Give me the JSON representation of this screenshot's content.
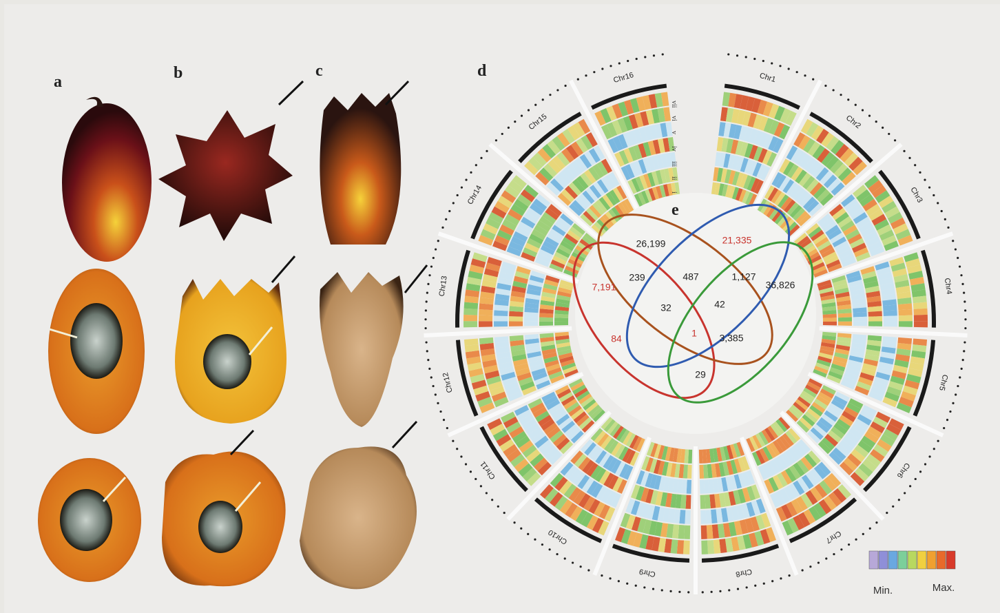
{
  "panel_labels": [
    "a",
    "b",
    "c",
    "d",
    "e"
  ],
  "circos": {
    "chromosomes": [
      "Chr1",
      "Chr2",
      "Chr3",
      "Chr4",
      "Chr5",
      "Chr6",
      "Chr7",
      "Chr8",
      "Chr9",
      "Chr10",
      "Chr11",
      "Chr12",
      "Chr13",
      "Chr14",
      "Chr15",
      "Chr16"
    ],
    "tracks": [
      "i",
      "ii",
      "iii",
      "iv",
      "v",
      "vi",
      "vii"
    ]
  },
  "venn": {
    "regions": [
      "26,199",
      "21,335",
      "7,191",
      "239",
      "487",
      "1,127",
      "36,826",
      "32",
      "42",
      "84",
      "1",
      "3,385",
      "29"
    ]
  },
  "legend": {
    "min": "Min.",
    "max": "Max."
  }
}
